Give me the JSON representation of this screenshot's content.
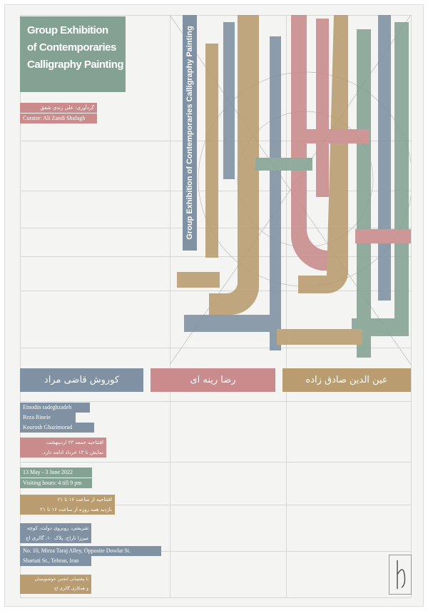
{
  "poster": {
    "title": [
      "Group Exhibition",
      "of Contemporaries",
      "Calligraphy Painting"
    ],
    "curator_fa": "گردآوری: علی زندی شفق",
    "curator_en": "Curator: Ali Zandi Shafagh",
    "vertical_title": "Group Exhibition of Contemporaries Calligraphy Painting",
    "artists_fa": [
      "کوروش قاضی مراد",
      "رضا رینه ای",
      "عین الدین صادق زاده"
    ],
    "artists_en": [
      "Einodin sadeghzadeh",
      "Reza Rineie",
      "Kourosh Ghazimorad"
    ],
    "opening_fa": [
      "افتتاحیه جمعه ۲۳ اردیبهشت",
      "نمایش تا ۱۳ خرداد ادامه دارد."
    ],
    "dates_en": [
      "13 May - 3 June 2022",
      "Visiting hours: 4 till 9 pm"
    ],
    "hours_fa": [
      "افتتاحیه از ساعت ۱۶ تا ۲۱",
      "بازدید همه روزه از ساعت ۱۶ تا ۲۱"
    ],
    "address_fa": [
      "شریعتی، روبروی دولت، کوچه",
      "میرزا تاراج، پلاک ۱۰، گالری اج"
    ],
    "address_en": [
      "No. 10, Mirza Taraj Alley, Opposite Dowlat St.",
      "Shariati St., Tehran, Iran"
    ],
    "support_fa": [
      "با پشتیبانی انجمن خوشنویسان",
      "و همکاری گالری اج"
    ]
  }
}
